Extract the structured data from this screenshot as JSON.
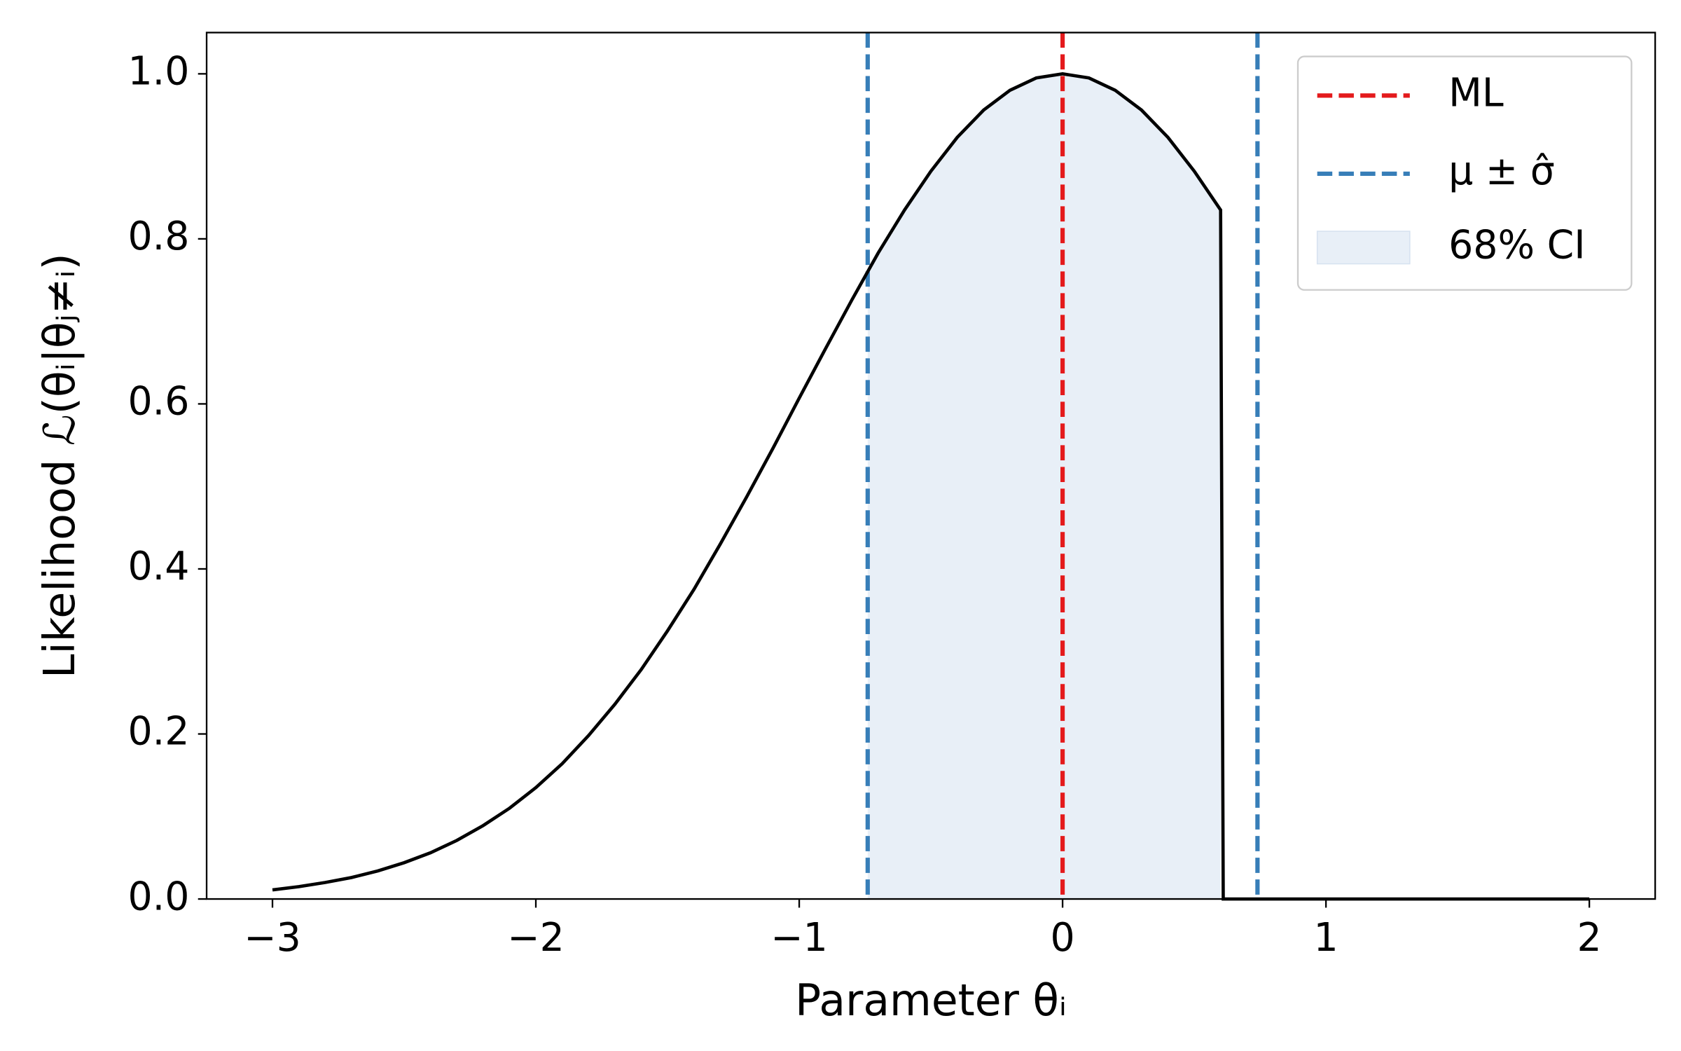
{
  "chart_data": {
    "type": "likelihood",
    "xlabel": "Parameter θᵢ",
    "ylabel": "Likelihood ℒ(θᵢ|θⱼ≠ᵢ)",
    "xlim": [
      -3.25,
      2.25
    ],
    "ylim": [
      0,
      1.05
    ],
    "xticks": [
      {
        "value": -3,
        "label": "−3"
      },
      {
        "value": -2,
        "label": "−2"
      },
      {
        "value": -1,
        "label": "−1"
      },
      0,
      1,
      2
    ],
    "yticks": [
      {
        "value": 0,
        "label": "0.0"
      },
      {
        "value": 0.2,
        "label": "0.2"
      },
      {
        "value": 0.4,
        "label": "0.4"
      },
      {
        "value": 0.6,
        "label": "0.6"
      },
      {
        "value": 0.8,
        "label": "0.8"
      },
      {
        "value": 1,
        "label": "1.0"
      }
    ],
    "curve": {
      "color": "#000000",
      "x": [
        -3.0,
        -2.9,
        -2.8,
        -2.7,
        -2.6,
        -2.5,
        -2.4,
        -2.3,
        -2.2,
        -2.1,
        -2.0,
        -1.9,
        -1.8,
        -1.7,
        -1.6,
        -1.5,
        -1.4,
        -1.3,
        -1.2,
        -1.1,
        -1.0,
        -0.9,
        -0.8,
        -0.7,
        -0.6,
        -0.5,
        -0.4,
        -0.3,
        -0.2,
        -0.1,
        0,
        0.1,
        0.2,
        0.3,
        0.4,
        0.5,
        0.6,
        0.61,
        2.0
      ],
      "values": [
        0.011,
        0.015,
        0.02,
        0.026,
        0.034,
        0.044,
        0.056,
        0.071,
        0.089,
        0.11,
        0.135,
        0.164,
        0.198,
        0.236,
        0.278,
        0.325,
        0.375,
        0.43,
        0.487,
        0.546,
        0.607,
        0.667,
        0.726,
        0.783,
        0.835,
        0.882,
        0.923,
        0.956,
        0.98,
        0.995,
        1.0,
        0.995,
        0.98,
        0.956,
        0.923,
        0.882,
        0.835,
        0,
        0
      ]
    },
    "ci": {
      "name": "68% CI",
      "color": "#e8eff7",
      "range": [
        -0.74,
        0.6
      ]
    },
    "vlines": [
      {
        "name": "ML",
        "color": "#e41a1c",
        "x": [
          0
        ]
      },
      {
        "name": "μ ± σ̂",
        "color": "#377eb8",
        "x": [
          -0.74,
          0.74
        ]
      }
    ]
  }
}
